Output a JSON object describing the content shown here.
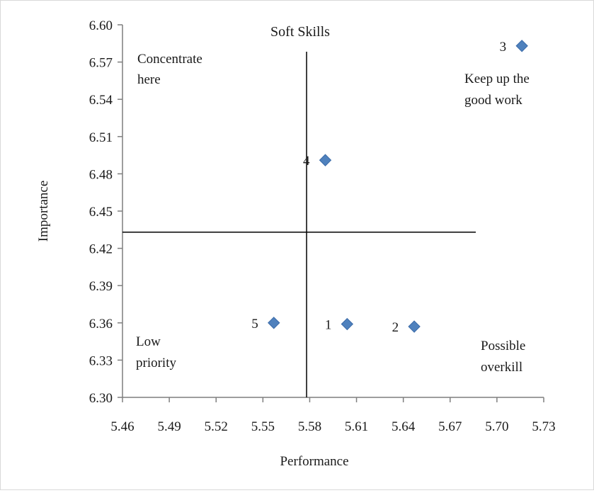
{
  "chart_data": {
    "type": "scatter",
    "title": "Soft Skills",
    "xlabel": "Performance",
    "ylabel": "Importance",
    "xlim": [
      5.46,
      5.73
    ],
    "ylim": [
      6.3,
      6.6
    ],
    "x_ticks": [
      "5.46",
      "5.49",
      "5.52",
      "5.55",
      "5.58",
      "5.61",
      "5.64",
      "5.67",
      "5.70",
      "5.73"
    ],
    "y_ticks": [
      "6.30",
      "6.33",
      "6.36",
      "6.39",
      "6.42",
      "6.45",
      "6.48",
      "6.51",
      "6.54",
      "6.57",
      "6.60"
    ],
    "grid": false,
    "legend": "none",
    "marker_color": "#4f81bd",
    "points": [
      {
        "label": "1",
        "x": 5.604,
        "y": 6.359
      },
      {
        "label": "2",
        "x": 5.647,
        "y": 6.357
      },
      {
        "label": "3",
        "x": 5.716,
        "y": 6.583
      },
      {
        "label": "4",
        "x": 5.59,
        "y": 6.491
      },
      {
        "label": "5",
        "x": 5.557,
        "y": 6.36
      }
    ],
    "reference_lines": {
      "x": 5.578,
      "y": 6.433
    },
    "quadrant_labels": {
      "top_left": [
        "Concentrate",
        "here"
      ],
      "top_right": [
        "Keep up the",
        "good work"
      ],
      "bottom_left": [
        "Low",
        "priority"
      ],
      "bottom_right": [
        "Possible",
        "overkill"
      ]
    }
  }
}
